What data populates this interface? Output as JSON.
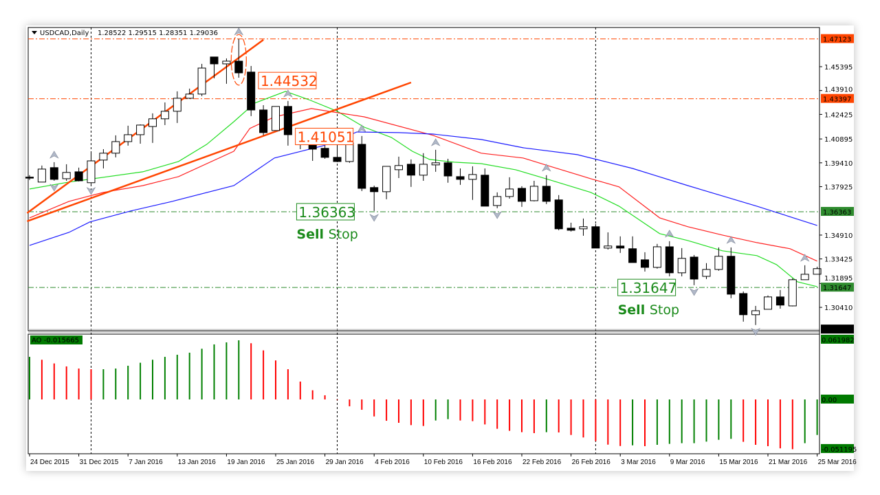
{
  "header": {
    "symbol": "USDCAD,Daily",
    "ohlc": "1.28522 1.29515 1.28351 1.29036"
  },
  "ao_label": "AO -0.015665",
  "chart_data": [
    {
      "type": "candlestick",
      "price_axis": {
        "ticks": [
          "1.45395",
          "1.43910",
          "1.42425",
          "1.40895",
          "1.39410",
          "1.37925",
          "1.34910",
          "1.33425",
          "1.31895",
          "1.30410"
        ],
        "range": [
          1.2895,
          1.474
        ]
      },
      "candles_ohlc": [
        [
          1.3852,
          1.3864,
          1.3834,
          1.385
        ],
        [
          1.3821,
          1.3924,
          1.3821,
          1.3902
        ],
        [
          1.3911,
          1.3945,
          1.3829,
          1.3838
        ],
        [
          1.3842,
          1.3932,
          1.3829,
          1.3881
        ],
        [
          1.3885,
          1.3911,
          1.3825,
          1.3829
        ],
        [
          1.3817,
          1.4001,
          1.3808,
          1.3953
        ],
        [
          1.3958,
          1.4026,
          1.3906,
          1.4001
        ],
        [
          1.4001,
          1.4112,
          1.3975,
          1.4073
        ],
        [
          1.4073,
          1.4172,
          1.4048,
          1.4116
        ],
        [
          1.4116,
          1.418,
          1.406,
          1.4176
        ],
        [
          1.4167,
          1.4249,
          1.4065,
          1.4215
        ],
        [
          1.4215,
          1.4317,
          1.4176,
          1.4262
        ],
        [
          1.4262,
          1.4386,
          1.4189,
          1.4343
        ],
        [
          1.4343,
          1.4403,
          1.4339,
          1.4369
        ],
        [
          1.4369,
          1.4557,
          1.4356,
          1.4531
        ],
        [
          1.46,
          1.46,
          1.4467,
          1.4557
        ],
        [
          1.4557,
          1.4591,
          1.4433,
          1.4574
        ],
        [
          1.4574,
          1.4712,
          1.4471,
          1.4501
        ],
        [
          1.4506,
          1.4544,
          1.4232,
          1.427
        ],
        [
          1.427,
          1.43,
          1.4112,
          1.4129
        ],
        [
          1.4142,
          1.4292,
          1.4142,
          1.4292
        ],
        [
          1.4292,
          1.4326,
          1.4048,
          1.4116
        ],
        [
          1.4116,
          1.4142,
          1.4026,
          1.4056
        ],
        [
          1.4078,
          1.4099,
          1.3953,
          1.4026
        ],
        [
          1.4031,
          1.4048,
          1.3966,
          1.3975
        ],
        [
          1.3975,
          1.4112,
          1.3945,
          1.3949
        ],
        [
          1.3949,
          1.4078,
          1.3941,
          1.4065
        ],
        [
          1.4056,
          1.4108,
          1.3765,
          1.3782
        ],
        [
          1.3787,
          1.3799,
          1.3641,
          1.3761
        ],
        [
          1.3761,
          1.3919,
          1.3714,
          1.3919
        ],
        [
          1.3898,
          1.3979,
          1.3846,
          1.3924
        ],
        [
          1.3932,
          1.3962,
          1.3791,
          1.3864
        ],
        [
          1.3864,
          1.4001,
          1.3829,
          1.3932
        ],
        [
          1.3928,
          1.4022,
          1.3885,
          1.3941
        ],
        [
          1.3941,
          1.3966,
          1.3817,
          1.3859
        ],
        [
          1.3855,
          1.3906,
          1.3804,
          1.3838
        ],
        [
          1.3838,
          1.3919,
          1.371,
          1.3868
        ],
        [
          1.3864,
          1.3906,
          1.3671,
          1.3671
        ],
        [
          1.3675,
          1.3757,
          1.3658,
          1.3731
        ],
        [
          1.3731,
          1.3851,
          1.3718,
          1.3778
        ],
        [
          1.3782,
          1.3795,
          1.3667,
          1.3701
        ],
        [
          1.3705,
          1.3829,
          1.3701,
          1.3795
        ],
        [
          1.3795,
          1.3864,
          1.3684,
          1.3701
        ],
        [
          1.371,
          1.374,
          1.3521,
          1.353
        ],
        [
          1.3534,
          1.3568,
          1.3513,
          1.3521
        ],
        [
          1.353,
          1.3594,
          1.3487,
          1.3543
        ],
        [
          1.3543,
          1.356,
          1.341,
          1.341
        ],
        [
          1.341,
          1.3508,
          1.3401,
          1.3423
        ],
        [
          1.3423,
          1.3483,
          1.338,
          1.341
        ],
        [
          1.3406,
          1.3483,
          1.332,
          1.332
        ],
        [
          1.3337,
          1.3384,
          1.3264,
          1.329
        ],
        [
          1.329,
          1.3436,
          1.3282,
          1.3418
        ],
        [
          1.3418,
          1.3453,
          1.3234,
          1.3256
        ],
        [
          1.3256,
          1.341,
          1.3234,
          1.3346
        ],
        [
          1.3354,
          1.3367,
          1.3179,
          1.3217
        ],
        [
          1.3234,
          1.3316,
          1.3217,
          1.3277
        ],
        [
          1.3277,
          1.3414,
          1.3269,
          1.3359
        ],
        [
          1.3359,
          1.3414,
          1.3098,
          1.3123
        ],
        [
          1.3127,
          1.314,
          1.2952,
          1.2995
        ],
        [
          1.2995,
          1.305,
          1.2931,
          1.302
        ],
        [
          1.3029,
          1.3115,
          1.3029,
          1.3106
        ],
        [
          1.3106,
          1.3149,
          1.3033,
          1.3055
        ],
        [
          1.305,
          1.3222,
          1.3047,
          1.3213
        ],
        [
          1.3213,
          1.3303,
          1.3213,
          1.3247
        ],
        [
          1.3247,
          1.3294,
          1.3247,
          1.3282
        ]
      ],
      "moving_averages": [
        {
          "color": "#22dd22",
          "points": [
            [
              0,
              1.3778
            ],
            [
              3.2,
              1.3821
            ],
            [
              9.2,
              1.3885
            ],
            [
              12.1,
              1.3949
            ],
            [
              14.4,
              1.4056
            ],
            [
              16.6,
              1.4197
            ],
            [
              18.3,
              1.4313
            ],
            [
              20.8,
              1.4386
            ],
            [
              22.7,
              1.4334
            ],
            [
              25,
              1.4262
            ],
            [
              27.2,
              1.4163
            ],
            [
              29.4,
              1.4099
            ],
            [
              31.1,
              1.4013
            ],
            [
              32.5,
              1.3962
            ],
            [
              34.5,
              1.3945
            ],
            [
              36.7,
              1.3936
            ],
            [
              39.5,
              1.3898
            ],
            [
              42.3,
              1.3834
            ],
            [
              45.6,
              1.3757
            ],
            [
              47.9,
              1.3671
            ],
            [
              51.2,
              1.35
            ],
            [
              53.5,
              1.3457
            ],
            [
              56.3,
              1.3393
            ],
            [
              59.1,
              1.3363
            ],
            [
              60.7,
              1.3307
            ],
            [
              62.4,
              1.32
            ],
            [
              64,
              1.317
            ]
          ]
        },
        {
          "color": "#ff2020",
          "points": [
            [
              0,
              1.3598
            ],
            [
              3.2,
              1.3701
            ],
            [
              6,
              1.3757
            ],
            [
              9.2,
              1.3799
            ],
            [
              12.1,
              1.3855
            ],
            [
              16.6,
              1.4013
            ],
            [
              17.9,
              1.4155
            ],
            [
              19.9,
              1.4227
            ],
            [
              22.9,
              1.4279
            ],
            [
              27.2,
              1.4227
            ],
            [
              32.8,
              1.4112
            ],
            [
              36.7,
              1.4001
            ],
            [
              40.1,
              1.3971
            ],
            [
              42.3,
              1.3919
            ],
            [
              45.6,
              1.3842
            ],
            [
              47.9,
              1.3791
            ],
            [
              51.2,
              1.3598
            ],
            [
              53.5,
              1.3543
            ],
            [
              56.3,
              1.3491
            ],
            [
              59.1,
              1.3444
            ],
            [
              61.8,
              1.3406
            ],
            [
              64,
              1.3329
            ]
          ]
        },
        {
          "color": "#1a1aff",
          "points": [
            [
              0,
              1.3427
            ],
            [
              3.2,
              1.3508
            ],
            [
              4.9,
              1.3573
            ],
            [
              8.2,
              1.3641
            ],
            [
              11.6,
              1.3701
            ],
            [
              16.6,
              1.3799
            ],
            [
              19.9,
              1.3971
            ],
            [
              23.9,
              1.4048
            ],
            [
              26.6,
              1.4133
            ],
            [
              30,
              1.4129
            ],
            [
              32.8,
              1.412
            ],
            [
              36.7,
              1.4086
            ],
            [
              40.1,
              1.4035
            ],
            [
              44.5,
              1.3992
            ],
            [
              49,
              1.3906
            ],
            [
              53.5,
              1.3799
            ],
            [
              59.1,
              1.3671
            ],
            [
              64,
              1.3551
            ]
          ]
        }
      ],
      "trendlines": [
        {
          "from": [
            -0.2,
            1.3628
          ],
          "to": [
            19.0,
            1.4707
          ],
          "color": "#ff4500"
        },
        {
          "from": [
            -0.2,
            1.3577
          ],
          "to": [
            31.0,
            1.4441
          ],
          "color": "#ff4500"
        }
      ],
      "horizontal_levels": [
        {
          "price": "1.47123",
          "color": "#ff4500"
        },
        {
          "price": "1.43397",
          "color": "#ff4500"
        },
        {
          "price": "1.36363",
          "color": "#2e8b2e"
        },
        {
          "price": "1.31647",
          "color": "#2e8b2e"
        }
      ],
      "current_price": "1.29036",
      "period_separators": [
        5,
        25,
        46
      ],
      "price_labels": [
        {
          "text": "1.44532",
          "bar": 18.6,
          "color": "#ff4500"
        },
        {
          "text": "1.41051",
          "bar": 21.6,
          "color": "#ff4500"
        },
        {
          "text": "1.36363",
          "bar": 21.7,
          "color": "#1a8a1a",
          "note_bold": "Sell",
          "note": "Stop"
        },
        {
          "text": "1.31647",
          "bar": 47.8,
          "color": "#1a8a1a",
          "note_bold": "Sell",
          "note": "Stop"
        }
      ],
      "highlight_ellipse": {
        "bar": 17,
        "price_top": 1.474,
        "price_bottom": 1.4425,
        "color": "#ff4500"
      },
      "fractals_up": [
        2,
        17,
        21,
        27,
        33,
        42,
        52,
        57,
        63
      ],
      "fractals_down": [
        2,
        5,
        28,
        38,
        54,
        59
      ],
      "time_ticks": [
        {
          "label": "24 Dec 2015",
          "bar": 0
        },
        {
          "label": "31 Dec 2015",
          "bar": 4
        },
        {
          "label": "7 Jan 2016",
          "bar": 8
        },
        {
          "label": "13 Jan 2016",
          "bar": 12
        },
        {
          "label": "19 Jan 2016",
          "bar": 16
        },
        {
          "label": "25 Jan 2016",
          "bar": 20
        },
        {
          "label": "29 Jan 2016",
          "bar": 24
        },
        {
          "label": "4 Feb 2016",
          "bar": 28
        },
        {
          "label": "10 Feb 2016",
          "bar": 32
        },
        {
          "label": "16 Feb 2016",
          "bar": 36
        },
        {
          "label": "22 Feb 2016",
          "bar": 40
        },
        {
          "label": "26 Feb 2016",
          "bar": 44
        },
        {
          "label": "3 Mar 2016",
          "bar": 48
        },
        {
          "label": "9 Mar 2016",
          "bar": 52
        },
        {
          "label": "15 Mar 2016",
          "bar": 56
        },
        {
          "label": "21 Mar 2016",
          "bar": 60
        },
        {
          "label": "25 Mar 2016",
          "bar": 64
        }
      ]
    },
    {
      "type": "bar",
      "indicator": "AO",
      "axis_labels": [
        "0.061982",
        "0.00",
        "-0.051195"
      ],
      "range": [
        -0.051195,
        0.061982
      ],
      "up_color": "#008000",
      "down_color": "#ff0000",
      "values": [
        0.0441,
        0.0411,
        0.0373,
        0.0342,
        0.032,
        0.0313,
        0.0313,
        0.032,
        0.0349,
        0.038,
        0.0411,
        0.0441,
        0.0463,
        0.0484,
        0.0525,
        0.057,
        0.0591,
        0.0612,
        0.0582,
        0.0508,
        0.0404,
        0.0313,
        0.0185,
        0.0095,
        0.0043,
        -0.0005,
        -0.0071,
        -0.0107,
        -0.0176,
        -0.0221,
        -0.0242,
        -0.0266,
        -0.0275,
        -0.0218,
        -0.0204,
        -0.0218,
        -0.0225,
        -0.0259,
        -0.0304,
        -0.0325,
        -0.0339,
        -0.0349,
        -0.0339,
        -0.0342,
        -0.0368,
        -0.0394,
        -0.0432,
        -0.0468,
        -0.0482,
        -0.0475,
        -0.0484,
        -0.047,
        -0.046,
        -0.0453,
        -0.0453,
        -0.0437,
        -0.0418,
        -0.0408,
        -0.0439,
        -0.047,
        -0.0484,
        -0.0506,
        -0.0515,
        -0.0453,
        -0.0368
      ]
    }
  ]
}
